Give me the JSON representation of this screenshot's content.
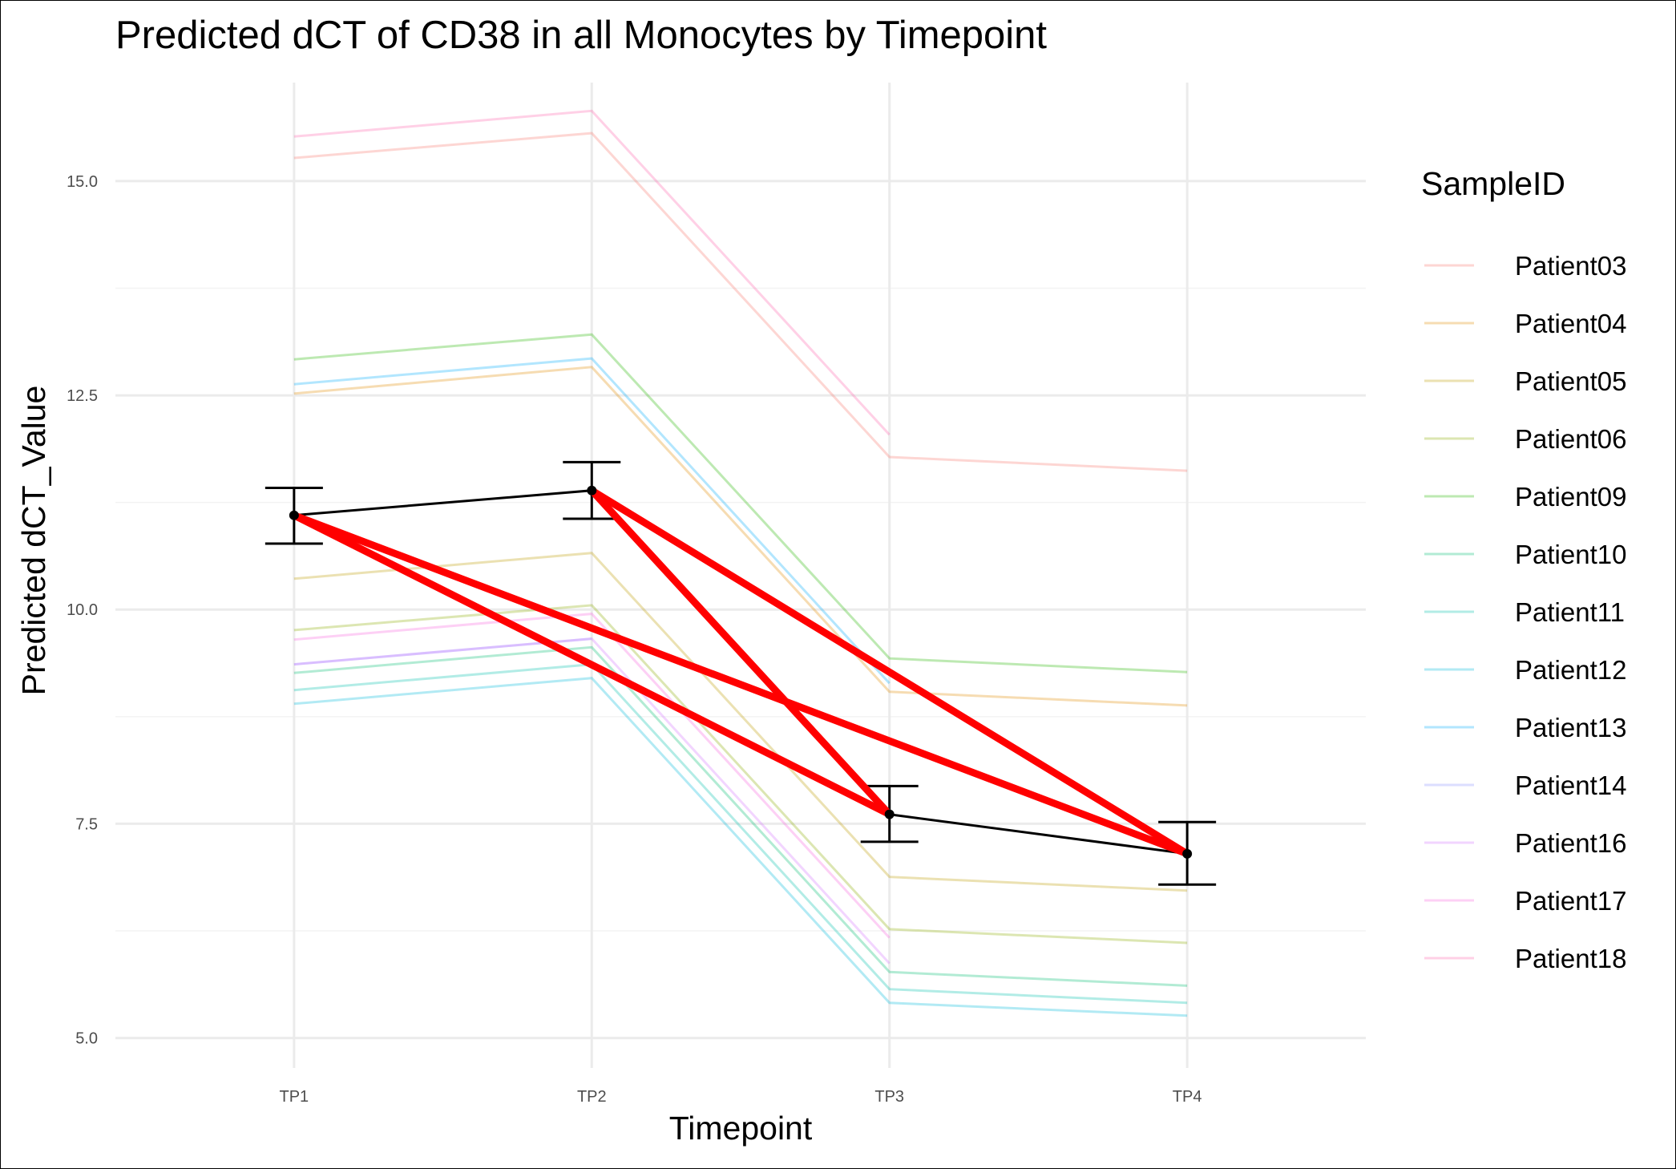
{
  "chart_data": {
    "type": "line",
    "title": "Predicted dCT of  CD38 in  all  Monocytes by Timepoint",
    "xlabel": "Timepoint",
    "ylabel": "Predicted dCT_Value",
    "categories": [
      "TP1",
      "TP2",
      "TP3",
      "TP4"
    ],
    "ylim": [
      4.65,
      16.15
    ],
    "yticks": [
      5.0,
      7.5,
      10.0,
      12.5,
      15.0
    ],
    "ytick_labels": [
      "5.0",
      "7.5",
      "10.0",
      "12.5",
      "15.0"
    ],
    "grid": true,
    "legend": {
      "title": "SampleID",
      "position": "right"
    },
    "series": [
      {
        "name": "Patient03",
        "color": "#F8766D",
        "values": [
          15.27,
          15.56,
          11.78,
          11.62
        ]
      },
      {
        "name": "Patient04",
        "color": "#E18A00",
        "values": [
          12.52,
          12.83,
          9.04,
          8.88
        ]
      },
      {
        "name": "Patient05",
        "color": "#BE9C00",
        "values": [
          10.36,
          10.66,
          6.88,
          6.72
        ]
      },
      {
        "name": "Patient06",
        "color": "#8CAB00",
        "values": [
          9.76,
          10.05,
          6.27,
          6.11
        ]
      },
      {
        "name": "Patient09",
        "color": "#24B700",
        "values": [
          12.92,
          13.21,
          9.43,
          9.27
        ]
      },
      {
        "name": "Patient10",
        "color": "#00BE70",
        "values": [
          9.26,
          9.56,
          5.77,
          5.61
        ]
      },
      {
        "name": "Patient11",
        "color": "#00C1AB",
        "values": [
          9.06,
          9.36,
          5.57,
          5.41
        ]
      },
      {
        "name": "Patient12",
        "color": "#00BBDA",
        "values": [
          8.9,
          9.2,
          5.41,
          5.26
        ]
      },
      {
        "name": "Patient13",
        "color": "#00ACFC",
        "values": [
          12.63,
          12.93,
          9.14,
          null
        ]
      },
      {
        "name": "Patient14",
        "color": "#8B93FF",
        "values": [
          9.36,
          9.66,
          null,
          null
        ]
      },
      {
        "name": "Patient16",
        "color": "#D575FE",
        "values": [
          9.36,
          9.66,
          5.87,
          null
        ]
      },
      {
        "name": "Patient17",
        "color": "#F962DD",
        "values": [
          9.65,
          9.95,
          6.17,
          null
        ]
      },
      {
        "name": "Patient18",
        "color": "#FF65AC",
        "values": [
          15.52,
          15.82,
          12.04,
          null
        ]
      }
    ],
    "mean_line": {
      "values": [
        11.1,
        11.39,
        7.61,
        7.15
      ],
      "error_low": [
        10.77,
        11.06,
        7.29,
        6.79
      ],
      "error_high": [
        11.42,
        11.72,
        7.94,
        7.52
      ]
    },
    "highlight_segments": [
      {
        "from": "TP1",
        "to": "TP3"
      },
      {
        "from": "TP1",
        "to": "TP4"
      },
      {
        "from": "TP2",
        "to": "TP3"
      },
      {
        "from": "TP2",
        "to": "TP4"
      }
    ],
    "colors": {
      "mean_line": "#000000",
      "highlight": "#FF0000",
      "grid_major": "#EBEBEB",
      "grid_minor": "#F3F3F3",
      "tick_text": "#4D4D4D"
    },
    "series_opacity": 0.3
  }
}
